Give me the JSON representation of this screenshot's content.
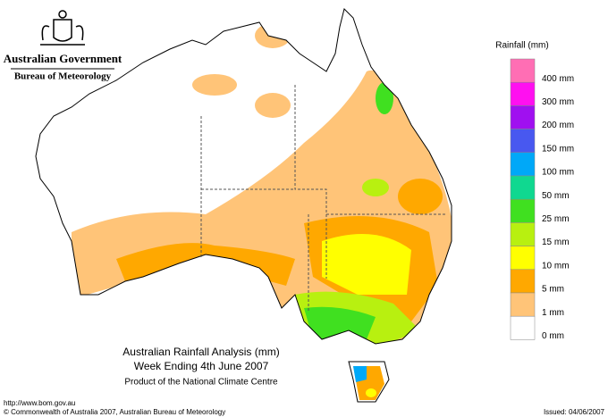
{
  "header": {
    "government": "Australian Government",
    "bureau": "Bureau of Meteorology"
  },
  "legend": {
    "title": "Rainfall (mm)",
    "items": [
      {
        "label": "400 mm",
        "color": "#ff6eb4"
      },
      {
        "label": "300 mm",
        "color": "#ff10f0"
      },
      {
        "label": "200 mm",
        "color": "#a010f0"
      },
      {
        "label": "150 mm",
        "color": "#4858f0"
      },
      {
        "label": "100 mm",
        "color": "#00a8f8"
      },
      {
        "label": "50 mm",
        "color": "#10d890"
      },
      {
        "label": "25 mm",
        "color": "#40e020"
      },
      {
        "label": "15 mm",
        "color": "#b8f010"
      },
      {
        "label": "10 mm",
        "color": "#ffff00"
      },
      {
        "label": "5 mm",
        "color": "#ffa800"
      },
      {
        "label": "1 mm",
        "color": "#ffc478"
      },
      {
        "label": "0 mm",
        "color": "#ffffff"
      }
    ]
  },
  "map": {
    "title": "Australian Rainfall Analysis (mm)",
    "subtitle": "Week Ending 4th June 2007",
    "credit": "Product of the National Climate Centre"
  },
  "footer": {
    "url": "http://www.bom.gov.au",
    "copyright": "© Commonwealth of Australia 2007, Australian Bureau of Meteorology",
    "issued": "Issued: 04/06/2007"
  }
}
